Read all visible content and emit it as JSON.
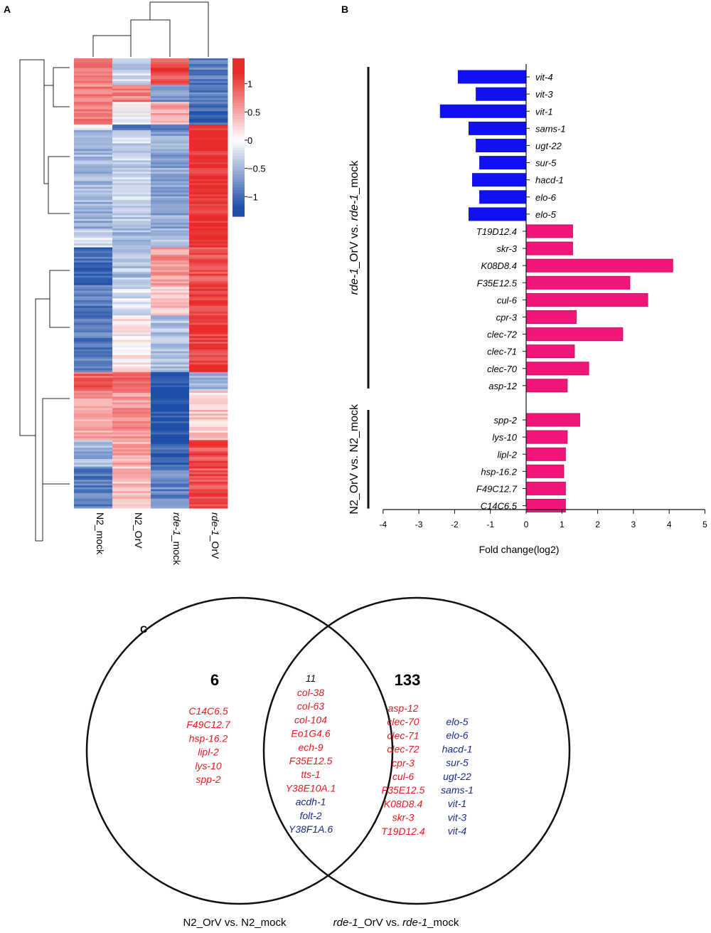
{
  "panels": {
    "a": "A",
    "b": "B",
    "c": "C"
  },
  "heatmap": {
    "columns": [
      "N2_mock",
      "N2_OrV",
      "rde-1_mock",
      "rde-1_OrV"
    ],
    "column_labels": [
      {
        "italic": "",
        "plain": "N2_mock"
      },
      {
        "italic": "",
        "plain": "N2_OrV"
      },
      {
        "italic": "rde-1",
        "plain": "_mock"
      },
      {
        "italic": "rde-1",
        "plain": "_OrV"
      }
    ],
    "colorbar_ticks": [
      "1",
      "0.5",
      "0",
      "−0.5",
      "−1"
    ],
    "colorbar_values": [
      1,
      0.5,
      0,
      -0.5,
      -1
    ],
    "colorbar_range": [
      -1.35,
      1.45
    ],
    "colors": {
      "low": "#1f4fa8",
      "mid": "#ffffff",
      "high": "#e82b2b"
    },
    "clusters": [
      {
        "rows": 14,
        "levels": [
          0.8,
          -0.3,
          1.0,
          -0.9
        ]
      },
      {
        "rows": 9,
        "levels": [
          0.7,
          0.7,
          -0.7,
          -0.9
        ]
      },
      {
        "rows": 12,
        "levels": [
          0.8,
          0.0,
          0.5,
          -1.0
        ]
      },
      {
        "rows": 3,
        "levels": [
          0.0,
          -1.1,
          -0.8,
          1.2
        ]
      },
      {
        "rows": 52,
        "levels": [
          -0.5,
          -0.3,
          -0.6,
          1.2
        ]
      },
      {
        "rows": 10,
        "levels": [
          -0.2,
          -0.5,
          -0.4,
          1.2
        ]
      },
      {
        "rows": 20,
        "levels": [
          -1.0,
          -0.4,
          0.6,
          1.0
        ]
      },
      {
        "rows": 16,
        "levels": [
          -0.9,
          -0.2,
          0.3,
          1.1
        ]
      },
      {
        "rows": 30,
        "levels": [
          -0.9,
          0.1,
          -0.4,
          1.1
        ]
      },
      {
        "rows": 10,
        "levels": [
          0.9,
          0.9,
          -1.2,
          -0.5
        ]
      },
      {
        "rows": 26,
        "levels": [
          0.5,
          0.6,
          -1.2,
          0.3
        ]
      },
      {
        "rows": 14,
        "levels": [
          -0.5,
          0.5,
          -1.1,
          1.0
        ]
      },
      {
        "rows": 22,
        "levels": [
          -0.9,
          0.4,
          -0.8,
          1.0
        ]
      }
    ]
  },
  "chart_data": [
    {
      "type": "bar",
      "orientation": "horizontal",
      "xlabel": "Fold change(log2)",
      "xlim": [
        -4,
        5
      ],
      "xticks": [
        -4,
        -3,
        -2,
        -1,
        0,
        1,
        2,
        3,
        4,
        5
      ],
      "group_labels": [
        {
          "italic": "rde-1",
          "plain": "_OrV vs. ",
          "italic2": "rde-1",
          "plain2": "_mock"
        },
        {
          "italic": "",
          "plain": "N2_OrV vs. N2_mock",
          "italic2": "",
          "plain2": ""
        }
      ],
      "colors": {
        "down": "#1010f0",
        "up": "#f2167a",
        "up_edge": "#c4105f"
      },
      "groups": [
        {
          "name": "rde-1_OrV vs. rde-1_mock",
          "genes": [
            "vit-4",
            "vit-3",
            "vit-1",
            "sams-1",
            "ugt-22",
            "sur-5",
            "hacd-1",
            "elo-6",
            "elo-5",
            "T19D12.4",
            "skr-3",
            "K08D8.4",
            "F35E12.5",
            "cul-6",
            "cpr-3",
            "clec-72",
            "clec-71",
            "clec-70",
            "asp-12"
          ],
          "values": [
            -1.9,
            -1.4,
            -2.4,
            -1.6,
            -1.4,
            -1.3,
            -1.5,
            -1.3,
            -1.6,
            1.3,
            1.3,
            4.1,
            2.9,
            3.4,
            1.4,
            2.7,
            1.35,
            1.75,
            1.15
          ]
        },
        {
          "name": "N2_OrV vs. N2_mock",
          "genes": [
            "spp-2",
            "lys-10",
            "lipl-2",
            "hsp-16.2",
            "F49C12.7",
            "C14C6.5"
          ],
          "values": [
            1.5,
            1.15,
            1.1,
            1.05,
            1.1,
            1.1
          ]
        }
      ]
    }
  ],
  "venn": {
    "left_count": "6",
    "right_count": "133",
    "center_count": "11",
    "left_genes": [
      "C14C6.5",
      "F49C12.7",
      "hsp-16.2",
      "lipl-2",
      "lys-10",
      "spp-2"
    ],
    "center_red": [
      "col-38",
      "col-63",
      "col-104",
      "Eo1G4.6",
      "ech-9",
      "F35E12.5",
      "tts-1",
      "Y38E10A.1"
    ],
    "center_blue": [
      "acdh-1",
      "folt-2",
      "Y38F1A.6"
    ],
    "right_red": [
      "asp-12",
      "clec-70",
      "clec-71",
      "clec-72",
      "cpr-3",
      "cul-6",
      "F35E12.5",
      "K08D8.4",
      "skr-3",
      "T19D12.4"
    ],
    "right_blue": [
      "elo-5",
      "elo-6",
      "hacd-1",
      "sur-5",
      "ugt-22",
      "sams-1",
      "vit-1",
      "vit-3",
      "vit-4"
    ],
    "left_title": {
      "italic": "",
      "plain": "N2_OrV vs. N2_mock"
    },
    "right_title": {
      "italic": "rde-1",
      "plain": "_OrV vs. ",
      "italic2": "rde-1",
      "plain2": "_mock"
    }
  }
}
